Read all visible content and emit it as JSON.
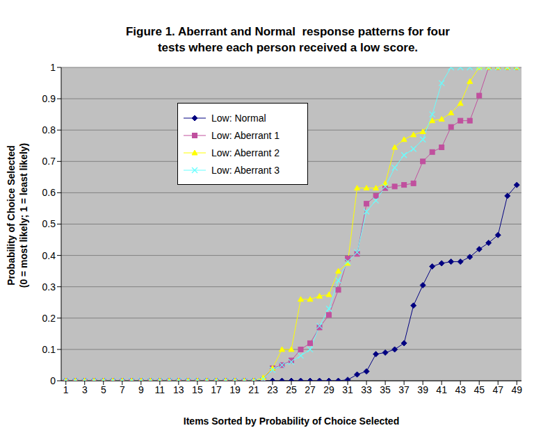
{
  "chart_data": {
    "type": "line",
    "title": "Figure 1. Aberrant and Normal  response patterns for four\ntests where each person received a low score.",
    "xlabel": "Items Sorted by Probability of Choice Selected",
    "ylabel": "Probability of Choice Selected\n(0 = most likely; 1 = least likely)",
    "x": [
      1,
      2,
      3,
      4,
      5,
      6,
      7,
      8,
      9,
      10,
      11,
      12,
      13,
      14,
      15,
      16,
      17,
      18,
      19,
      20,
      21,
      22,
      23,
      24,
      25,
      26,
      27,
      28,
      29,
      30,
      31,
      32,
      33,
      34,
      35,
      36,
      37,
      38,
      39,
      40,
      41,
      42,
      43,
      44,
      45,
      46,
      47,
      48,
      49
    ],
    "xlim": [
      0.5,
      49.5
    ],
    "xticks": [
      1,
      3,
      5,
      7,
      9,
      11,
      13,
      15,
      17,
      19,
      21,
      23,
      25,
      27,
      29,
      31,
      33,
      35,
      37,
      39,
      41,
      43,
      45,
      47,
      49
    ],
    "ylim": [
      0,
      1
    ],
    "yticks": [
      0,
      0.1,
      0.2,
      0.3,
      0.4,
      0.5,
      0.6,
      0.7,
      0.8,
      0.9,
      1
    ],
    "grid": true,
    "legend": "upper left",
    "series": [
      {
        "name": "Low: Normal",
        "color": "#000080",
        "marker": "diamond",
        "values": [
          0,
          0,
          0,
          0,
          0,
          0,
          0,
          0,
          0,
          0,
          0,
          0,
          0,
          0,
          0,
          0,
          0,
          0,
          0,
          0,
          0,
          0,
          0,
          0,
          0,
          0,
          0,
          0,
          0,
          0,
          0.003,
          0.02,
          0.03,
          0.085,
          0.09,
          0.1,
          0.12,
          0.24,
          0.305,
          0.365,
          0.375,
          0.38,
          0.38,
          0.395,
          0.42,
          0.44,
          0.465,
          0.59,
          0.625
        ]
      },
      {
        "name": "Low: Aberrant 1",
        "color": "#C0509E",
        "marker": "square",
        "values": [
          0,
          0,
          0,
          0,
          0,
          0,
          0,
          0,
          0,
          0,
          0,
          0,
          0,
          0,
          0,
          0,
          0,
          0,
          0,
          0,
          0,
          0.005,
          0.04,
          0.05,
          0.065,
          0.1,
          0.12,
          0.17,
          0.21,
          0.29,
          0.39,
          0.405,
          0.565,
          0.59,
          0.615,
          0.62,
          0.625,
          0.63,
          0.7,
          0.73,
          0.745,
          0.81,
          0.83,
          0.83,
          0.91,
          1,
          1,
          1,
          1
        ]
      },
      {
        "name": "Low: Aberrant 2",
        "color": "#FFFF00",
        "marker": "triangle",
        "values": [
          0,
          0,
          0,
          0,
          0,
          0,
          0,
          0,
          0,
          0,
          0,
          0,
          0,
          0,
          0,
          0,
          0,
          0,
          0,
          0,
          0,
          0.01,
          0.04,
          0.1,
          0.1,
          0.26,
          0.26,
          0.27,
          0.275,
          0.35,
          0.375,
          0.615,
          0.615,
          0.615,
          0.63,
          0.745,
          0.77,
          0.785,
          0.795,
          0.83,
          0.835,
          0.855,
          0.885,
          0.955,
          1,
          1,
          1,
          1,
          1
        ]
      },
      {
        "name": "Low: Aberrant 3",
        "color": "#66FFFF",
        "marker": "x",
        "values": [
          0,
          0,
          0,
          0,
          0,
          0,
          0,
          0,
          0,
          0,
          0,
          0,
          0,
          0,
          0,
          0,
          0,
          0,
          0,
          0,
          0,
          0.005,
          0.035,
          0.05,
          0.06,
          0.08,
          0.1,
          0.175,
          0.23,
          0.32,
          0.38,
          0.41,
          0.54,
          0.575,
          0.62,
          0.68,
          0.72,
          0.74,
          0.77,
          0.85,
          0.95,
          1,
          1,
          1,
          1,
          1,
          1,
          1,
          1
        ]
      }
    ]
  }
}
